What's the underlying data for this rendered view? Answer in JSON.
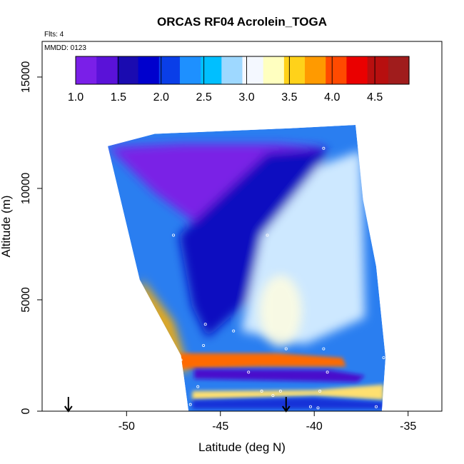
{
  "chart_data": {
    "type": "heatmap",
    "title": "ORCAS RF04 Acrolein_TOGA",
    "flights_note": "Flts: 4",
    "date_note": "MMDD: 0123",
    "xlabel": "Latitude (deg N)",
    "ylabel": "Altitude (m)",
    "xlim": [
      -54.5,
      -33.2
    ],
    "ylim": [
      0,
      16600
    ],
    "x_ticks": [
      -50,
      -45,
      -40,
      -35
    ],
    "x_tick_labels": [
      "-50",
      "-45",
      "-40",
      "-35"
    ],
    "y_ticks": [
      0,
      5000,
      10000,
      15000
    ],
    "y_tick_labels": [
      "0",
      "5000",
      "10000",
      "15000"
    ],
    "colorbar": {
      "min": 1.0,
      "max": 4.9,
      "ticks": [
        1.0,
        1.5,
        2.0,
        2.5,
        3.0,
        3.5,
        4.0,
        4.5
      ],
      "tick_labels": [
        "1.0",
        "1.5",
        "2.0",
        "2.5",
        "3.0",
        "3.5",
        "4.0",
        "4.5"
      ],
      "colors": [
        "#7a1fe8",
        "#5a12d8",
        "#1a0bb0",
        "#0000cd",
        "#0a3ee8",
        "#1e90ff",
        "#00bfff",
        "#9ed8ff",
        "#f4f8ff",
        "#ffffc0",
        "#ffd21a",
        "#ff9a00",
        "#ff4a00",
        "#ea0000",
        "#b80f0f",
        "#a01c1c"
      ]
    },
    "field_polygon": [
      [
        -51,
        11900
      ],
      [
        -48.5,
        12450
      ],
      [
        -41.3,
        12700
      ],
      [
        -37.8,
        12850
      ],
      [
        -37.4,
        9500
      ],
      [
        -36.7,
        6500
      ],
      [
        -36.2,
        2400
      ],
      [
        -36.4,
        0
      ],
      [
        -46.7,
        0
      ],
      [
        -47.1,
        2500
      ],
      [
        -49.3,
        5900
      ],
      [
        -51,
        11900
      ]
    ],
    "features": [
      {
        "kind": "purple_core",
        "points": [
          [
            -51,
            11850
          ],
          [
            -47,
            12000
          ],
          [
            -42,
            12000
          ],
          [
            -39.5,
            11850
          ],
          [
            -45.6,
            8000
          ],
          [
            -48.5,
            9800
          ]
        ]
      },
      {
        "kind": "dark_blue_wedge",
        "points": [
          [
            -47.2,
            7900
          ],
          [
            -42.5,
            11600
          ],
          [
            -39.3,
            11800
          ],
          [
            -41.7,
            6300
          ],
          [
            -45.7,
            3300
          ],
          [
            -46.5,
            4700
          ]
        ]
      },
      {
        "kind": "light_blue_plume",
        "points": [
          [
            -42.8,
            7900
          ],
          [
            -39.8,
            11000
          ],
          [
            -37.5,
            11700
          ],
          [
            -37.3,
            4200
          ],
          [
            -40.5,
            3000
          ],
          [
            -43.9,
            3600
          ]
        ]
      },
      {
        "kind": "warm_edge_band",
        "points": [
          [
            -49.2,
            5900
          ],
          [
            -47.5,
            4000
          ],
          [
            -46.9,
            2300
          ],
          [
            -46.6,
            1800
          ],
          [
            -47.6,
            1800
          ],
          [
            -47.9,
            3400
          ],
          [
            -49.3,
            5300
          ]
        ]
      },
      {
        "kind": "warm_layer",
        "points": [
          [
            -47.2,
            2600
          ],
          [
            -42,
            2600
          ],
          [
            -38.5,
            2400
          ],
          [
            -38.3,
            2000
          ],
          [
            -43,
            2000
          ],
          [
            -47.2,
            1900
          ]
        ]
      },
      {
        "kind": "purple_layer",
        "points": [
          [
            -46.4,
            1900
          ],
          [
            -39.2,
            1850
          ],
          [
            -37.3,
            1600
          ],
          [
            -37.7,
            1300
          ],
          [
            -43.5,
            1400
          ],
          [
            -46.4,
            1450
          ]
        ]
      },
      {
        "kind": "warm_low_layer",
        "points": [
          [
            -46.5,
            900
          ],
          [
            -40,
            950
          ],
          [
            -36.3,
            1200
          ],
          [
            -36.3,
            500
          ],
          [
            -40,
            700
          ],
          [
            -46.5,
            500
          ]
        ]
      },
      {
        "kind": "dark_low_layer",
        "points": [
          [
            -46.5,
            500
          ],
          [
            -40,
            600
          ],
          [
            -36.3,
            400
          ],
          [
            -36.3,
            100
          ],
          [
            -46.5,
            100
          ]
        ]
      }
    ],
    "obs_points": [
      [
        -38.2,
        12950
      ],
      [
        -39.5,
        11800
      ],
      [
        -47.5,
        7900
      ],
      [
        -42.5,
        7900
      ],
      [
        -45.8,
        3900
      ],
      [
        -44.3,
        3600
      ],
      [
        -45.9,
        2950
      ],
      [
        -47.1,
        2300
      ],
      [
        -41.5,
        2800
      ],
      [
        -39.5,
        2800
      ],
      [
        -43.5,
        1750
      ],
      [
        -39.3,
        1750
      ],
      [
        -46.2,
        1100
      ],
      [
        -42.8,
        900
      ],
      [
        -41.8,
        900
      ],
      [
        -39.7,
        900
      ],
      [
        -46.6,
        300
      ],
      [
        -42.2,
        700
      ],
      [
        -40.2,
        200
      ],
      [
        -39.8,
        150
      ],
      [
        -36.7,
        200
      ],
      [
        -36.3,
        2400
      ]
    ],
    "arrows_x": [
      -53.1,
      -41.5
    ]
  }
}
